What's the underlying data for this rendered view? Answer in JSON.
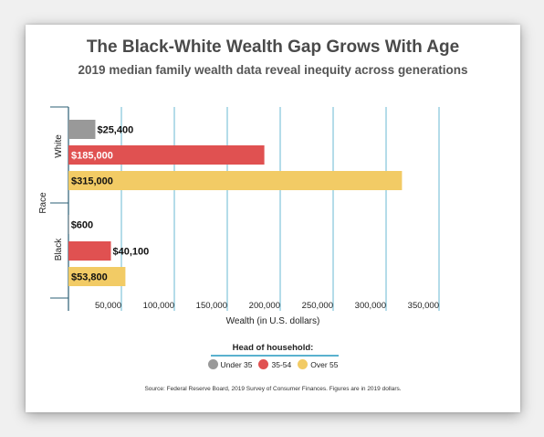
{
  "chart_data": {
    "type": "bar",
    "orientation": "horizontal",
    "title": "The Black-White Wealth Gap Grows With Age",
    "subtitle": "2019 median family wealth data reveal inequity across generations",
    "xlabel": "Wealth (in U.S. dollars)",
    "ylabel": "Race",
    "xlim": [
      0,
      350000
    ],
    "xticks": [
      50000,
      100000,
      150000,
      200000,
      250000,
      300000,
      350000
    ],
    "xtick_labels": [
      "50,000",
      "100,000",
      "150,000",
      "200,000",
      "250,000",
      "300,000",
      "350,000"
    ],
    "grid": "vertical",
    "categories": [
      "White",
      "Black"
    ],
    "series": [
      {
        "name": "Under 35",
        "color": "#999999",
        "values": [
          25400,
          600
        ],
        "labels": [
          "$25,400",
          "$600"
        ]
      },
      {
        "name": "35-54",
        "color": "#e05151",
        "values": [
          185000,
          40100
        ],
        "labels": [
          "$185,000",
          "$40,100"
        ]
      },
      {
        "name": "Over 55",
        "color": "#f2cb65",
        "values": [
          315000,
          53800
        ],
        "labels": [
          "$315,000",
          "$53,800"
        ]
      }
    ],
    "legend_title": "Head of household:",
    "legend_position": "bottom",
    "source": "Source: Federal Reserve Board, 2019 Survey of Consumer Finances. Figures are in 2019 dollars."
  }
}
